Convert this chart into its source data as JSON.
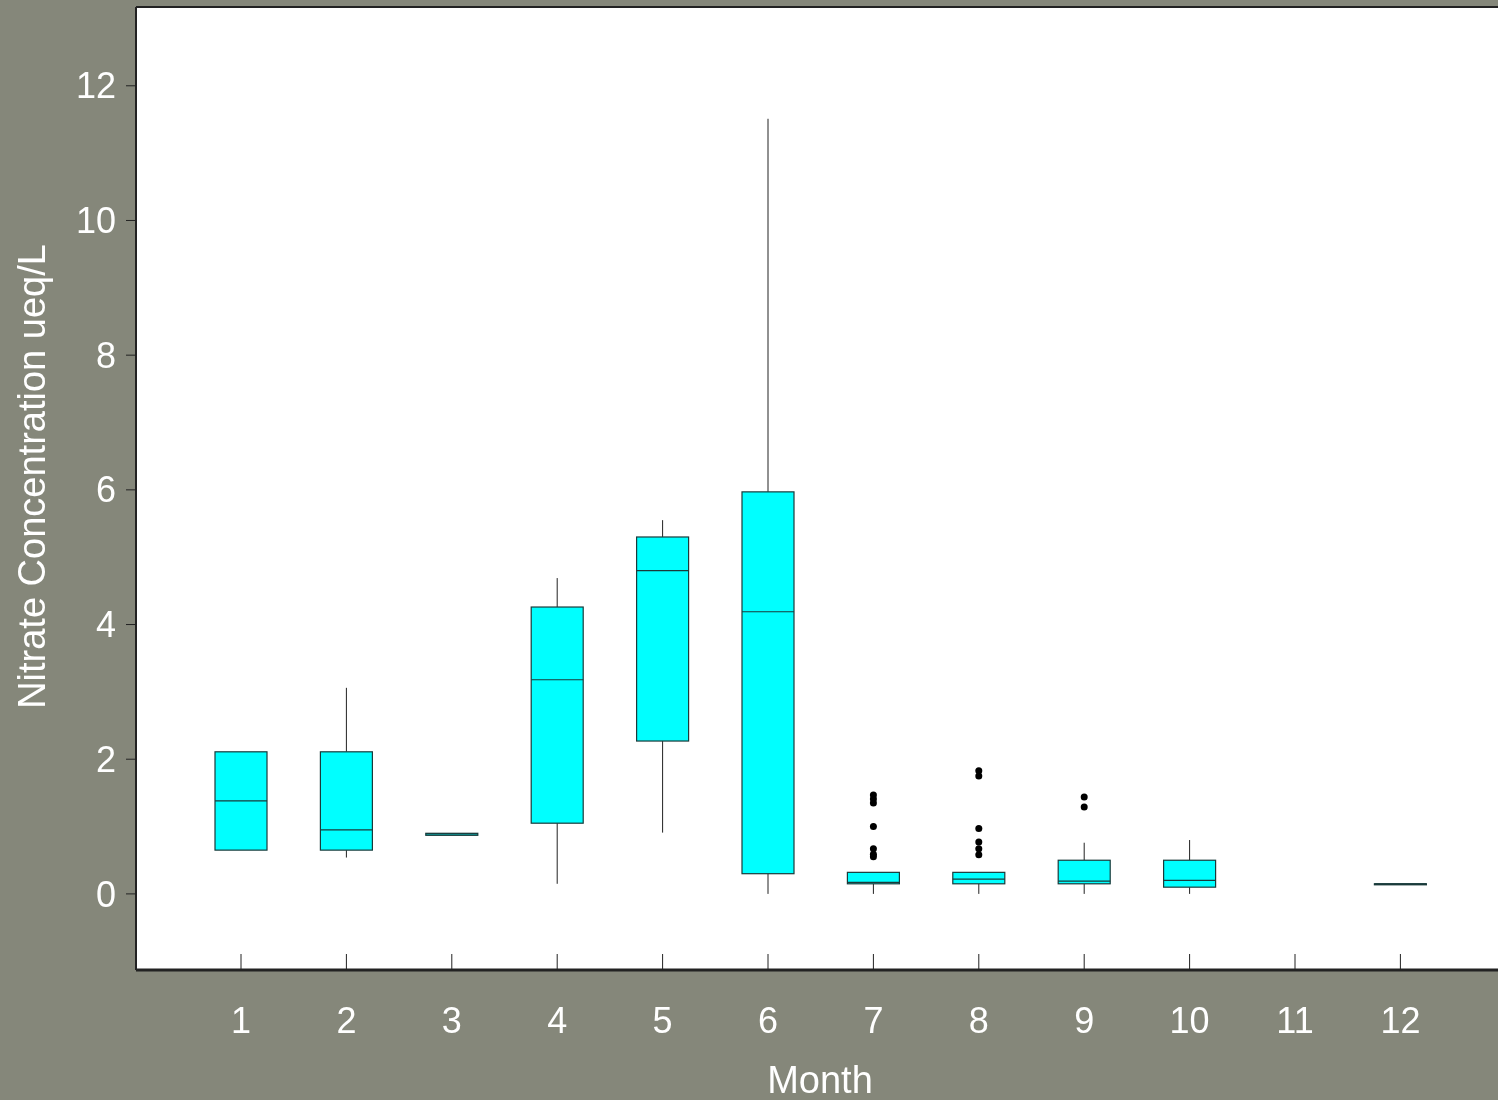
{
  "chart_data": {
    "type": "box",
    "xlabel": "Month",
    "ylabel": "Nitrate Concentration ueq/L",
    "categories": [
      "1",
      "2",
      "3",
      "4",
      "5",
      "6",
      "7",
      "8",
      "9",
      "10",
      "11",
      "12"
    ],
    "color": "#00ffff",
    "ylim": [
      -1.13,
      13.17
    ],
    "yticks": [
      0,
      2,
      4,
      6,
      8,
      10,
      12
    ],
    "grid": false,
    "boxes": [
      {
        "low": 0.65,
        "q1": 0.65,
        "median": 1.38,
        "q3": 2.11,
        "high": 2.11
      },
      {
        "low": 0.54,
        "q1": 0.65,
        "median": 0.95,
        "q3": 2.11,
        "high": 3.06
      },
      {
        "low": 0.87,
        "q1": 0.87,
        "median": 0.89,
        "q3": 0.9,
        "high": 0.9
      },
      {
        "low": 0.15,
        "q1": 1.05,
        "median": 3.18,
        "q3": 4.26,
        "high": 4.69
      },
      {
        "low": 0.91,
        "q1": 2.27,
        "median": 4.8,
        "q3": 5.3,
        "high": 5.55
      },
      {
        "low": 0,
        "q1": 0.3,
        "median": 4.19,
        "q3": 5.97,
        "high": 11.51
      },
      {
        "low": 0,
        "q1": 0.15,
        "median": 0.17,
        "q3": 0.32,
        "high": 0.32,
        "outliers": [
          1.47,
          1.41,
          1.35,
          1.0,
          0.67,
          0.59,
          0.55
        ]
      },
      {
        "low": 0,
        "q1": 0.15,
        "median": 0.22,
        "q3": 0.32,
        "high": 0.32,
        "outliers": [
          1.83,
          1.75,
          0.97,
          0.77,
          0.67,
          0.58
        ]
      },
      {
        "low": 0,
        "q1": 0.15,
        "median": 0.19,
        "q3": 0.5,
        "high": 0.76,
        "outliers": [
          1.44,
          1.29
        ]
      },
      {
        "low": 0,
        "q1": 0.1,
        "median": 0.2,
        "q3": 0.5,
        "high": 0.8
      },
      null,
      {
        "low": 0.15,
        "q1": 0.15,
        "median": 0.15,
        "q3": 0.15,
        "high": 0.15
      }
    ]
  }
}
